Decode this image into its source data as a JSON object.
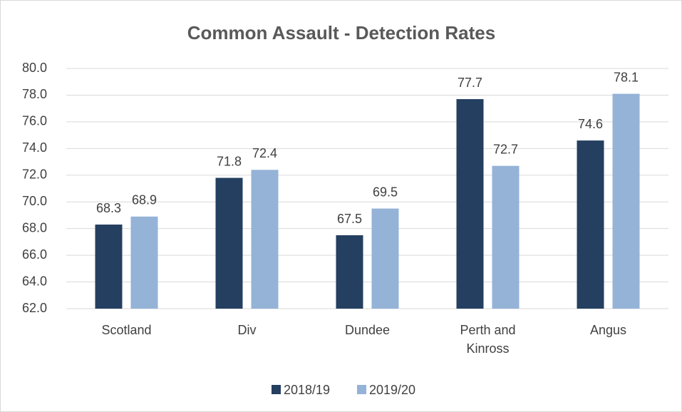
{
  "chart_data": {
    "type": "bar",
    "title": "Common Assault - Detection Rates",
    "categories": [
      "Scotland",
      "Div",
      "Dundee",
      "Perth and Kinross",
      "Angus"
    ],
    "series": [
      {
        "name": "2018/19",
        "color": "#243f60",
        "values": [
          68.3,
          71.8,
          67.5,
          77.7,
          74.6
        ]
      },
      {
        "name": "2019/20",
        "color": "#95b3d7",
        "values": [
          68.9,
          72.4,
          69.5,
          72.7,
          78.1
        ]
      }
    ],
    "ylim": [
      62,
      80
    ],
    "yticks": [
      {
        "value": 62,
        "label": "62.0"
      },
      {
        "value": 64,
        "label": "64.0"
      },
      {
        "value": 66,
        "label": "66.0"
      },
      {
        "value": 68,
        "label": "68.0"
      },
      {
        "value": 70,
        "label": "70.0"
      },
      {
        "value": 72,
        "label": "72.0"
      },
      {
        "value": 74,
        "label": "74.0"
      },
      {
        "value": 76,
        "label": "76.0"
      },
      {
        "value": 78,
        "label": "78.0"
      },
      {
        "value": 80,
        "label": "80.0"
      }
    ],
    "grid": true,
    "legend": "bottom"
  }
}
